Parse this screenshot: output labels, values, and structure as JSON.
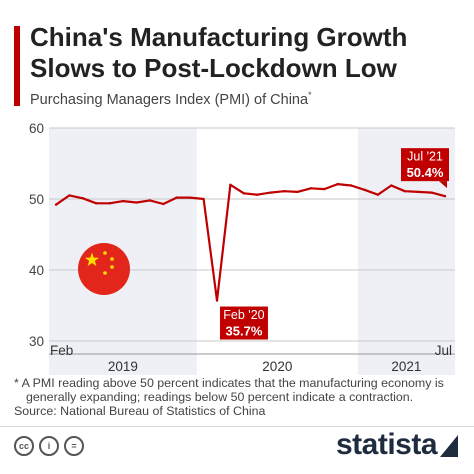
{
  "title": "China's Manufacturing Growth Slows to Post-Lockdown Low",
  "subtitle": "Purchasing Managers Index (PMI) of China",
  "subtitle_mark": "*",
  "colors": {
    "accent": "#c00000",
    "line": "#c00000",
    "band": "#eef0f6",
    "text": "#222222"
  },
  "chart_data": {
    "type": "line",
    "title": "China's Manufacturing Growth Slows to Post-Lockdown Low",
    "ylabel": "",
    "xlabel": "",
    "ylim": [
      30,
      60
    ],
    "y_ticks": [
      30,
      40,
      50,
      60
    ],
    "grid": true,
    "x_tick_labels": [
      "Feb",
      "Jul"
    ],
    "year_labels": [
      "2019",
      "2020",
      "2021"
    ],
    "x": [
      "2019-02",
      "2019-03",
      "2019-04",
      "2019-05",
      "2019-06",
      "2019-07",
      "2019-08",
      "2019-09",
      "2019-10",
      "2019-11",
      "2019-12",
      "2020-01",
      "2020-02",
      "2020-03",
      "2020-04",
      "2020-05",
      "2020-06",
      "2020-07",
      "2020-08",
      "2020-09",
      "2020-10",
      "2020-11",
      "2020-12",
      "2021-01",
      "2021-02",
      "2021-03",
      "2021-04",
      "2021-05",
      "2021-06",
      "2021-07"
    ],
    "series": [
      {
        "values": [
          49.2,
          50.5,
          50.1,
          49.4,
          49.4,
          49.7,
          49.5,
          49.8,
          49.3,
          50.2,
          50.2,
          50.0,
          35.7,
          52.0,
          50.8,
          50.6,
          50.9,
          51.1,
          51.0,
          51.5,
          51.4,
          52.1,
          51.9,
          51.3,
          50.6,
          51.9,
          51.1,
          51.0,
          50.9,
          50.4
        ]
      }
    ],
    "annotations": [
      {
        "x": "2020-02",
        "label": "Feb '20",
        "value_label": "35.7%"
      },
      {
        "x": "2021-07",
        "label": "Jul '21",
        "value_label": "50.4%"
      }
    ]
  },
  "footnote": {
    "line1": "* A PMI reading above 50 percent indicates that the manufacturing economy is",
    "line2": "generally expanding; readings below 50 percent indicate a contraction.",
    "source": "Source: National Bureau of Statistics of China"
  },
  "license_icons": [
    "cc-icon",
    "info-icon",
    "equals-icon"
  ],
  "brand": "statista"
}
